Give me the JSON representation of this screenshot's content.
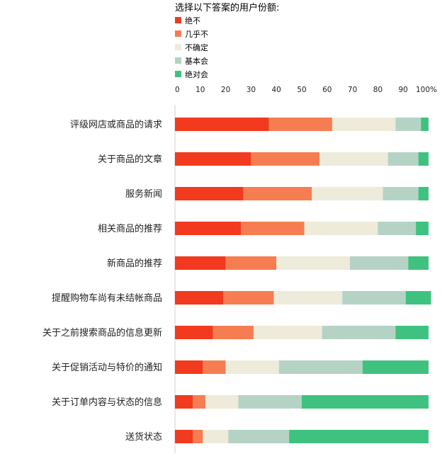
{
  "chart_data": {
    "type": "bar",
    "orientation": "horizontal",
    "stacked": true,
    "legend_title": "选择以下答案的用户份额:",
    "legend_placement": "top",
    "x_ticks": [
      "0",
      "10",
      "20",
      "30",
      "40",
      "50",
      "60",
      "70",
      "80",
      "90",
      "100%"
    ],
    "xlim": [
      0,
      100
    ],
    "grid": false,
    "categories": [
      "评级网店或商品的请求",
      "关于商品的文章",
      "服务新闻",
      "相关商品的推荐",
      "新商品的推荐",
      "提醒购物车尚有未结帐商品",
      "关于之前搜索商品的信息更新",
      "关于促销活动与特价的通知",
      "关于订单内容与状态的信息",
      "送货状态"
    ],
    "series": [
      {
        "name": "绝不",
        "color": "#f13a1e",
        "values": [
          37,
          30,
          27,
          26,
          20,
          19,
          15,
          11,
          7,
          7
        ]
      },
      {
        "name": "几乎不",
        "color": "#f67d52",
        "values": [
          25,
          27,
          27,
          25,
          20,
          20,
          16,
          9,
          5,
          4
        ]
      },
      {
        "name": "不确定",
        "color": "#eeebdb",
        "values": [
          25,
          27,
          28,
          29,
          29,
          27,
          27,
          21,
          13,
          10
        ]
      },
      {
        "name": "基本会",
        "color": "#b5d3c5",
        "values": [
          10,
          12,
          14,
          15,
          23,
          25,
          29,
          33,
          25,
          24
        ]
      },
      {
        "name": "绝对会",
        "color": "#3fc27f",
        "values": [
          3,
          4,
          4,
          5,
          8,
          10,
          13,
          26,
          50,
          55
        ]
      }
    ]
  }
}
